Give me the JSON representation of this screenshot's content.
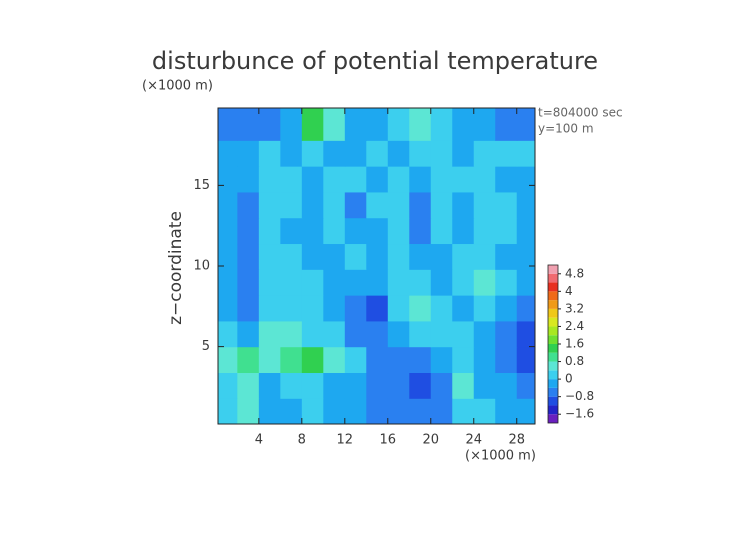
{
  "chart_data": {
    "type": "contour",
    "title": "disturbunce of potential temperature",
    "y_unit": "(×1000 m)",
    "x_unit": "(×1000 m)",
    "ylabel": "z−coordinate",
    "annotations": [
      "t=804000 sec",
      "y=100 m"
    ],
    "xlim": [
      0.2,
      29.7
    ],
    "ylim": [
      0.2,
      19.8
    ],
    "xticks": [
      4,
      8,
      12,
      16,
      20,
      24,
      28
    ],
    "yticks": [
      5,
      10,
      15
    ],
    "field": {
      "x": [
        1,
        3,
        5,
        7,
        9,
        11,
        13,
        15,
        17,
        19,
        21,
        23,
        25,
        27,
        29
      ],
      "z": [
        1.0,
        2.6,
        4.2,
        5.8,
        7.4,
        9.0,
        10.6,
        12.2,
        13.8,
        15.4,
        17.0,
        18.6
      ],
      "values": [
        [
          0.3,
          0.5,
          -0.1,
          -0.2,
          0.1,
          -0.3,
          -0.4,
          -0.7,
          -0.8,
          -0.7,
          -0.5,
          0.1,
          0.2,
          -0.3,
          -0.4
        ],
        [
          0.2,
          0.4,
          -0.2,
          0.1,
          0.3,
          -0.1,
          -0.4,
          -0.6,
          -0.8,
          -0.9,
          -0.5,
          0.5,
          -0.2,
          -0.4,
          -0.6
        ],
        [
          0.4,
          0.8,
          0.6,
          0.9,
          1.3,
          0.5,
          0.1,
          -0.5,
          -0.6,
          -0.5,
          -0.3,
          0.2,
          -0.2,
          -0.8,
          -1.1
        ],
        [
          0.1,
          -0.3,
          0.4,
          0.6,
          0.2,
          0.1,
          -0.5,
          -0.7,
          -0.2,
          0.3,
          0.2,
          0.1,
          -0.4,
          -0.7,
          -0.9
        ],
        [
          -0.2,
          -0.5,
          0.3,
          0.1,
          0.2,
          -0.3,
          -0.6,
          -0.9,
          0.2,
          0.4,
          0.1,
          -0.2,
          0.1,
          -0.3,
          -0.5
        ],
        [
          -0.3,
          -0.6,
          0.1,
          0.2,
          0.3,
          -0.2,
          -0.1,
          -0.4,
          0.3,
          0.1,
          -0.1,
          0.3,
          0.4,
          0.2,
          -0.3
        ],
        [
          -0.4,
          -0.6,
          0.2,
          0.1,
          -0.2,
          -0.1,
          0.2,
          -0.3,
          0.2,
          -0.4,
          -0.2,
          0.3,
          0.2,
          -0.1,
          -0.2
        ],
        [
          -0.2,
          -0.6,
          0.3,
          -0.1,
          -0.4,
          0.3,
          -0.3,
          -0.2,
          0.1,
          -0.5,
          0.3,
          -0.2,
          0.1,
          0.3,
          -0.1
        ],
        [
          -0.3,
          -0.5,
          0.2,
          0.3,
          -0.3,
          0.2,
          -0.5,
          0.1,
          0.3,
          -0.5,
          0.2,
          -0.1,
          0.3,
          0.2,
          -0.2
        ],
        [
          -0.1,
          -0.3,
          0.1,
          0.2,
          -0.2,
          0.1,
          0.3,
          -0.3,
          0.2,
          -0.4,
          0.1,
          0.3,
          0.1,
          -0.1,
          -0.2
        ],
        [
          -0.2,
          -0.1,
          0.2,
          -0.1,
          0.1,
          -0.3,
          -0.2,
          0.1,
          -0.2,
          0.2,
          0.3,
          -0.1,
          0.2,
          0.3,
          0.1
        ],
        [
          -0.7,
          -0.7,
          -0.6,
          -0.2,
          1.4,
          0.6,
          -0.2,
          -0.3,
          0.2,
          0.5,
          0.1,
          -0.2,
          -0.3,
          -0.5,
          -0.6
        ]
      ]
    },
    "colorbar": {
      "levels": [
        -2.0,
        -1.6,
        -1.2,
        -0.8,
        -0.4,
        0,
        0.4,
        0.8,
        1.2,
        1.6,
        2.0,
        2.4,
        2.8,
        3.2,
        3.6,
        4.0,
        4.4,
        4.8,
        5.2
      ],
      "colors": [
        "#6a1fbf",
        "#2323c8",
        "#1f4ee2",
        "#2a80f0",
        "#1ea8f0",
        "#3ccfee",
        "#5ce6d4",
        "#40e090",
        "#30d050",
        "#6ee030",
        "#a8e820",
        "#d8e820",
        "#f0c818",
        "#f09a18",
        "#f06a18",
        "#e83020",
        "#f06a70",
        "#f0a0b0"
      ],
      "ticks": [
        {
          "value": -1.6,
          "label": "−1.6"
        },
        {
          "value": -0.8,
          "label": "−0.8"
        },
        0,
        0.8,
        1.6,
        2.4,
        3.2,
        4,
        4.8
      ]
    }
  }
}
